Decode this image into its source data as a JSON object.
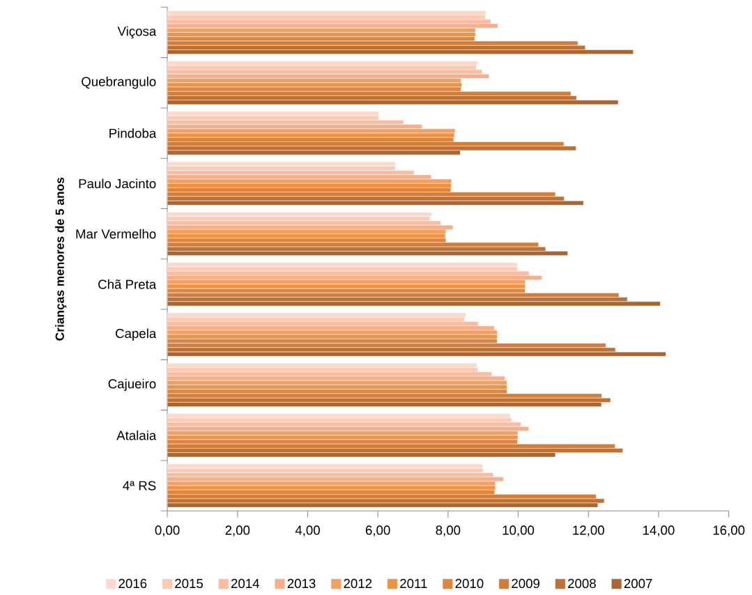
{
  "chart_data": {
    "type": "bar",
    "orientation": "horizontal",
    "ylabel": "Crianças menores de 5 anos",
    "categories": [
      "Viçosa",
      "Quebrangulo",
      "Pindoba",
      "Paulo Jacinto",
      "Mar Vermelho",
      "Chã Preta",
      "Capela",
      "Cajueiro",
      "Atalaia",
      "4ª RS"
    ],
    "series": [
      {
        "name": "2016",
        "color": "#fcdacb",
        "values": [
          9.08,
          8.84,
          6.02,
          6.5,
          7.53,
          9.98,
          8.51,
          8.82,
          9.77,
          8.99
        ]
      },
      {
        "name": "2015",
        "color": "#fbcbb5",
        "values": [
          9.06,
          8.81,
          6.02,
          6.49,
          7.48,
          9.98,
          8.47,
          8.85,
          9.81,
          9.0
        ]
      },
      {
        "name": "2014",
        "color": "#f9bd9f",
        "values": [
          9.22,
          8.97,
          6.73,
          7.03,
          7.79,
          10.31,
          8.86,
          9.25,
          10.08,
          9.29
        ]
      },
      {
        "name": "2013",
        "color": "#f8ae88",
        "values": [
          9.42,
          9.17,
          7.26,
          7.52,
          8.14,
          10.67,
          9.32,
          9.62,
          10.3,
          9.58
        ]
      },
      {
        "name": "2012",
        "color": "#f59f62",
        "values": [
          8.78,
          8.37,
          8.2,
          8.1,
          7.94,
          10.2,
          9.4,
          9.68,
          9.99,
          9.35
        ]
      },
      {
        "name": "2011",
        "color": "#f0923f",
        "values": [
          8.78,
          8.39,
          8.18,
          8.09,
          7.92,
          10.2,
          9.4,
          9.68,
          9.99,
          9.35
        ]
      },
      {
        "name": "2010",
        "color": "#e0853d",
        "values": [
          8.76,
          8.37,
          8.16,
          8.08,
          7.94,
          10.2,
          9.4,
          9.68,
          9.98,
          9.33
        ]
      },
      {
        "name": "2009",
        "color": "#d27d3a",
        "values": [
          11.7,
          11.5,
          11.3,
          11.06,
          10.58,
          12.87,
          12.5,
          12.38,
          12.76,
          12.22
        ]
      },
      {
        "name": "2008",
        "color": "#bf7134",
        "values": [
          11.91,
          11.66,
          11.65,
          11.31,
          10.78,
          13.11,
          12.77,
          12.63,
          12.98,
          12.45
        ]
      },
      {
        "name": "2007",
        "color": "#aa6530",
        "values": [
          13.28,
          12.85,
          8.35,
          11.86,
          11.41,
          14.05,
          14.21,
          12.37,
          11.06,
          12.27
        ]
      }
    ],
    "xlim": [
      0,
      16
    ],
    "xticks": [
      {
        "value": 0,
        "label": "0,00"
      },
      {
        "value": 2,
        "label": "2,00"
      },
      {
        "value": 4,
        "label": "4,00"
      },
      {
        "value": 6,
        "label": "6,00"
      },
      {
        "value": 8,
        "label": "8,00"
      },
      {
        "value": 10,
        "label": "10,00"
      },
      {
        "value": 12,
        "label": "12,00"
      },
      {
        "value": 14,
        "label": "14,00"
      },
      {
        "value": 16,
        "label": "16,00"
      }
    ],
    "legend": "bottom"
  }
}
